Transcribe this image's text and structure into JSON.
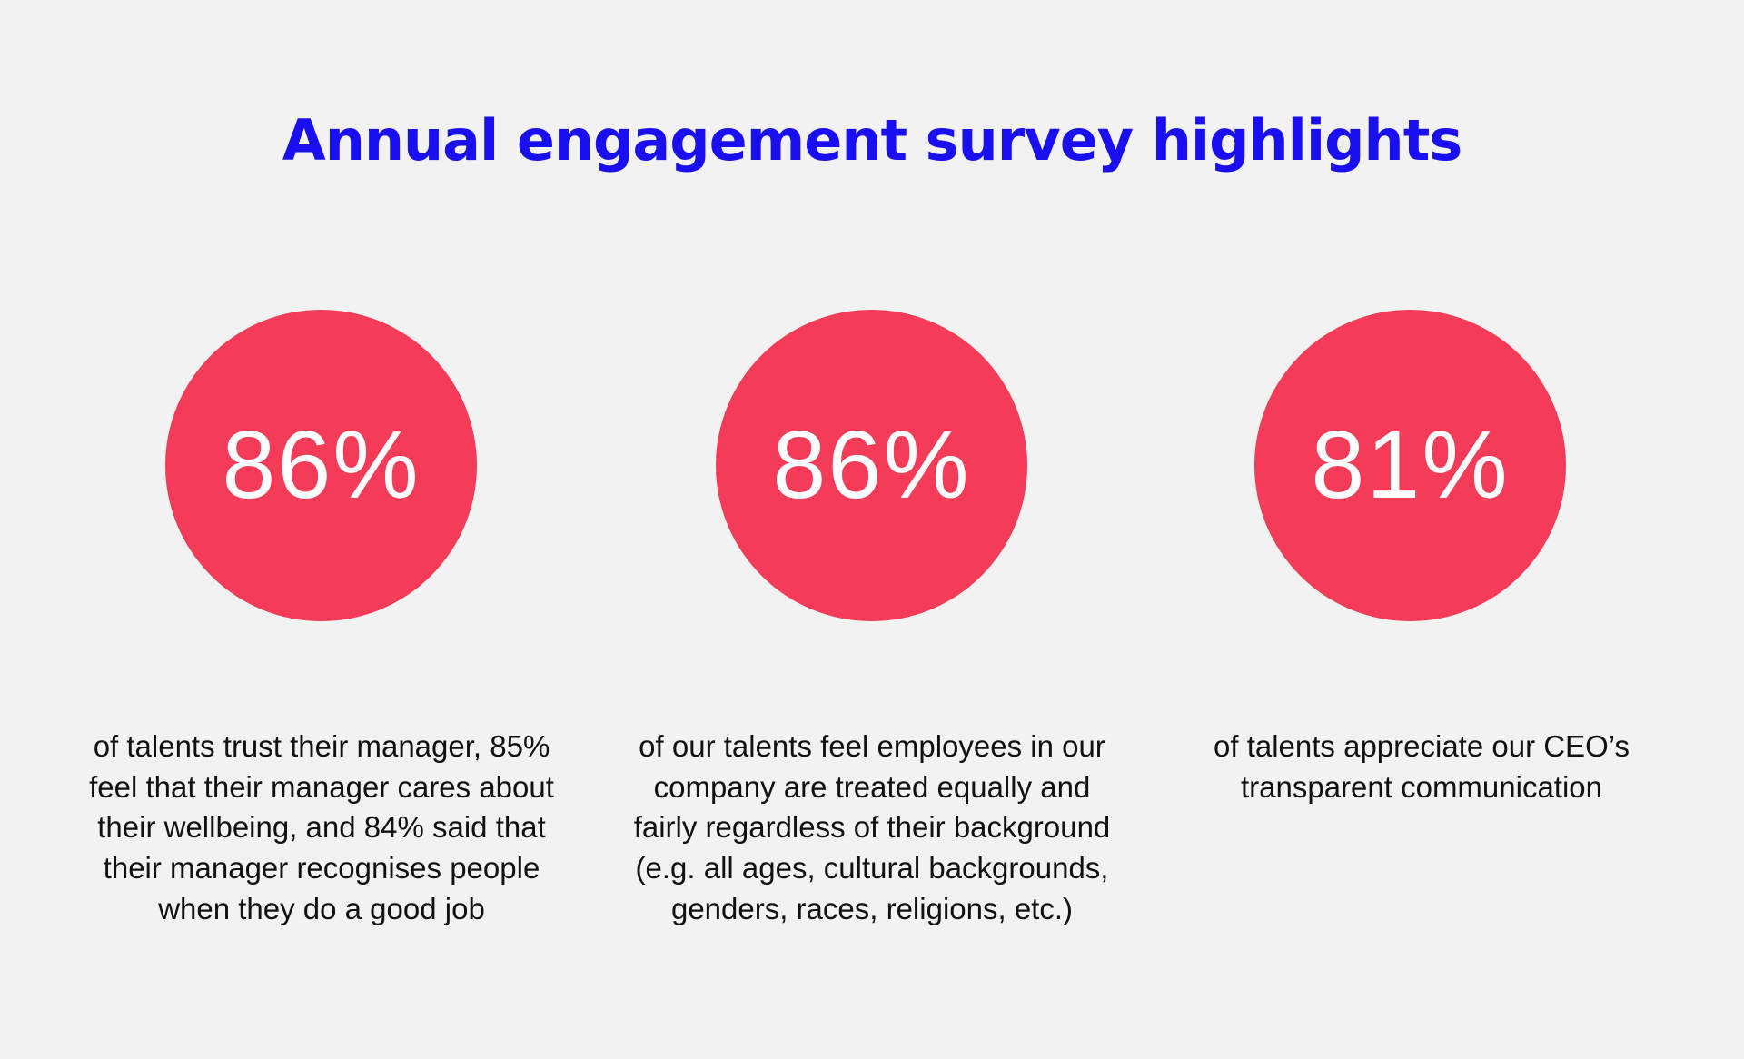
{
  "title": "Annual engagement survey highlights",
  "accent_color": "#f43b57",
  "title_color": "#1a0ff0",
  "stats": [
    {
      "value": "86%",
      "caption": "of talents trust their manager, 85% feel that their manager cares about their wellbeing, and 84% said that their manager recognises people when they do a good job"
    },
    {
      "value": "86%",
      "caption": "of our talents feel employees in our company are treated equally and fairly regardless of their background (e.g. all ages, cultural backgrounds, genders, races, religions, etc.)"
    },
    {
      "value": "81%",
      "caption": "of talents appreciate our CEO’s transparent communication"
    }
  ]
}
